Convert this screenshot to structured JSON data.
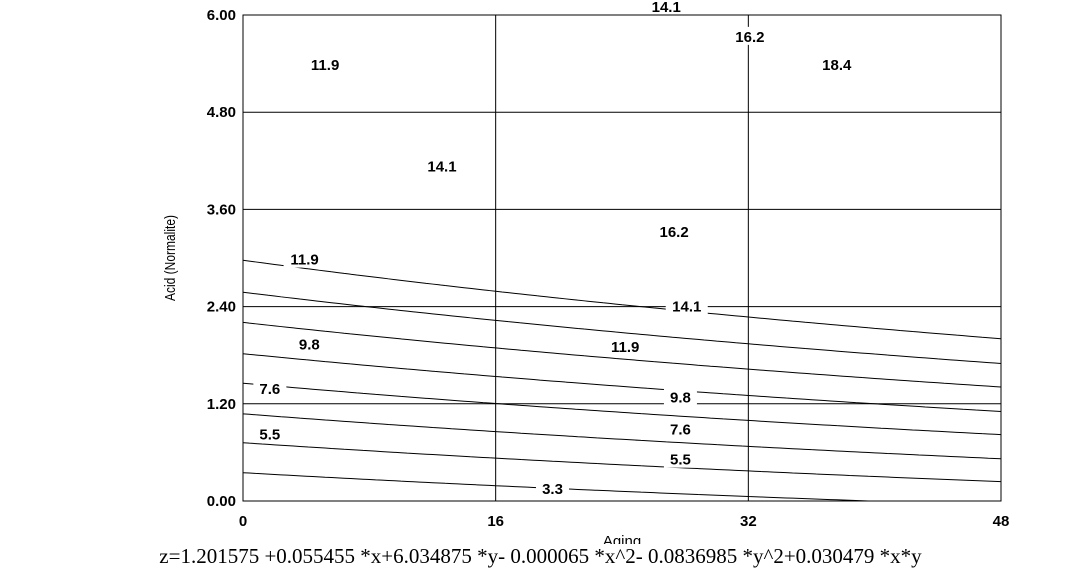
{
  "chart_data": {
    "type": "contour",
    "xlabel": "Aging",
    "ylabel": "Acid (Normalite)",
    "xlim": [
      0,
      48
    ],
    "ylim": [
      0,
      6
    ],
    "x_ticks": [
      "0",
      "16",
      "32",
      "48"
    ],
    "y_ticks": [
      "0.00",
      "1.20",
      "2.40",
      "3.60",
      "4.80",
      "6.00"
    ],
    "grid": true,
    "equation_text": "z=1.201575 +0.055455 *x+6.034875 *y- 0.000065 *x^2- 0.0836985 *y^2+0.030479 *x*y",
    "coefficients": {
      "c": 1.201575,
      "x": 0.055455,
      "y": 6.034875,
      "xx": -6.5e-05,
      "yy": -0.0836985,
      "xy": 0.030479
    },
    "contour_levels": [
      3.3,
      5.5,
      7.6,
      9.8,
      11.9,
      14.1,
      16.2,
      18.4
    ],
    "labels": [
      {
        "text": "3.3",
        "x": 19.6,
        "y": 0.15
      },
      {
        "text": "5.5",
        "x": 1.7,
        "y": 0.82
      },
      {
        "text": "5.5",
        "x": 27.7,
        "y": 0.51
      },
      {
        "text": "7.6",
        "x": 1.7,
        "y": 1.38
      },
      {
        "text": "7.6",
        "x": 27.7,
        "y": 0.88
      },
      {
        "text": "9.8",
        "x": 4.2,
        "y": 1.93
      },
      {
        "text": "9.8",
        "x": 27.7,
        "y": 1.28
      },
      {
        "text": "11.9",
        "x": 5.2,
        "y": 5.38
      },
      {
        "text": "11.9",
        "x": 3.9,
        "y": 2.98
      },
      {
        "text": "11.9",
        "x": 24.2,
        "y": 1.9
      },
      {
        "text": "14.1",
        "x": 26.8,
        "y": 6.1
      },
      {
        "text": "14.1",
        "x": 12.6,
        "y": 4.13
      },
      {
        "text": "14.1",
        "x": 28.1,
        "y": 2.4
      },
      {
        "text": "16.2",
        "x": 32.1,
        "y": 5.73
      },
      {
        "text": "16.2",
        "x": 27.3,
        "y": 3.32
      },
      {
        "text": "18.4",
        "x": 37.6,
        "y": 5.38
      }
    ]
  }
}
